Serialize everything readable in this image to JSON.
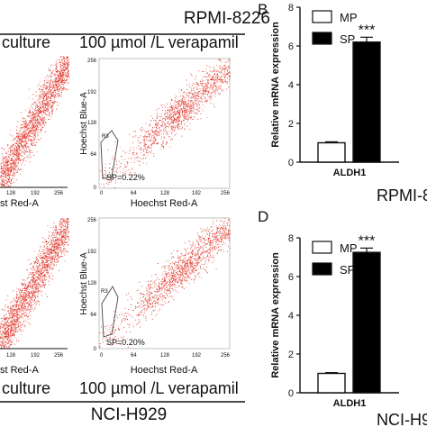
{
  "figure": {
    "top_label": "RPMI-8226",
    "bottom_label": "NCI-H929",
    "culture_label": "culture",
    "verapamil_label": "100 µmol /L verapamil",
    "letter_b": "B",
    "letter_d": "D",
    "cut_label_b": "RPMI-8",
    "cut_label_d": "NCI-H9"
  },
  "flow_panels": [
    {
      "id": "top-left",
      "dense": true,
      "x_label": "st Red-A",
      "x_ticks": [
        "128",
        "192",
        "256"
      ]
    },
    {
      "id": "top-right",
      "dense": false,
      "y_label": "Hoechst Blue-A",
      "x_label": "Hoechst Red-A",
      "y_ticks": [
        "256",
        "192",
        "128",
        "64",
        "0"
      ],
      "x_ticks": [
        "0",
        "64",
        "128",
        "192",
        "256"
      ],
      "gate": "R3",
      "sp_text": "SP=0.22%"
    },
    {
      "id": "bottom-left",
      "dense": true,
      "x_label": "st Red-A",
      "x_ticks": [
        "128",
        "192",
        "256"
      ]
    },
    {
      "id": "bottom-right",
      "dense": false,
      "y_label": "Hoechst Blue-A",
      "x_label": "Hoechst Red-A",
      "y_ticks": [
        "256",
        "192",
        "128",
        "64",
        "0"
      ],
      "x_ticks": [
        "0",
        "64",
        "128",
        "192",
        "256"
      ],
      "gate": "R3",
      "sp_text": "SP=0.20%"
    }
  ],
  "chart_data": [
    {
      "panel": "B",
      "type": "bar",
      "categories": [
        "ALDH1"
      ],
      "series": [
        {
          "name": "MP",
          "values": [
            1.0
          ],
          "error": [
            0.05
          ],
          "color": "#ffffff"
        },
        {
          "name": "SP",
          "values": [
            6.2
          ],
          "error": [
            0.25
          ],
          "color": "#000000"
        }
      ],
      "ylabel": "Relative mRNA expression",
      "ylim": [
        0,
        8
      ],
      "yticks": [
        "0",
        "2",
        "4",
        "6",
        "8"
      ],
      "annotation": "***",
      "legend": "top-left"
    },
    {
      "panel": "D",
      "type": "bar",
      "categories": [
        "ALDH1"
      ],
      "series": [
        {
          "name": "MP",
          "values": [
            1.0
          ],
          "error": [
            0.04
          ],
          "color": "#ffffff"
        },
        {
          "name": "SP",
          "values": [
            7.25
          ],
          "error": [
            0.22
          ],
          "color": "#000000"
        }
      ],
      "ylabel": "Relative mRNA expression",
      "ylim": [
        0,
        8
      ],
      "yticks": [
        "0",
        "2",
        "4",
        "6",
        "8"
      ],
      "annotation": "***",
      "legend": "top-left"
    }
  ]
}
